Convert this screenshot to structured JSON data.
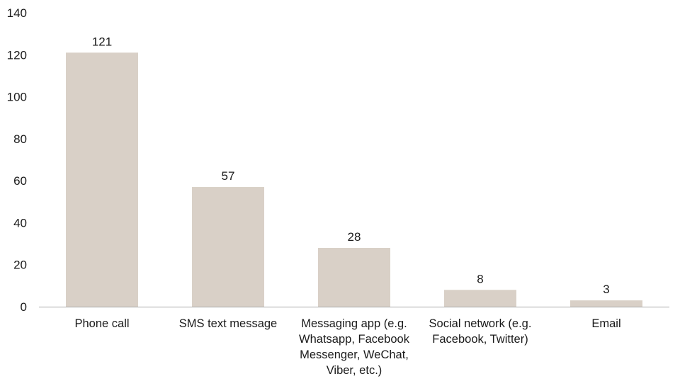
{
  "chart_data": {
    "type": "bar",
    "title": "",
    "xlabel": "",
    "ylabel": "",
    "categories": [
      [
        "Phone call"
      ],
      [
        "SMS text message"
      ],
      [
        "Messaging app (e.g.",
        "Whatsapp, Facebook",
        "Messenger, WeChat,",
        "Viber, etc.)"
      ],
      [
        "Social network (e.g.",
        "Facebook, Twitter)"
      ],
      [
        "Email"
      ]
    ],
    "values": [
      121,
      57,
      28,
      8,
      3
    ],
    "data_labels": [
      "121",
      "57",
      "28",
      "8",
      "3"
    ],
    "ylim": [
      0,
      140
    ],
    "yticks": [
      0,
      20,
      40,
      60,
      80,
      100,
      120,
      140
    ],
    "ytick_labels": [
      "0",
      "20",
      "40",
      "60",
      "80",
      "100",
      "120",
      "140"
    ],
    "grid": false,
    "legend": "none",
    "colors": {
      "bar": "#d9d0c7",
      "axis": "#a6a6a6",
      "text": "#1a1a1a"
    }
  }
}
